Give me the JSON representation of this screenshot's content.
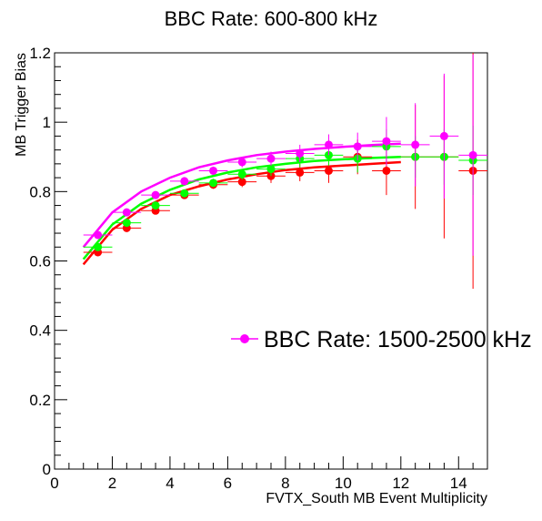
{
  "chart_data": {
    "type": "scatter",
    "title": "BBC Rate: 600-800 kHz",
    "xlabel": "FVTX_South MB Event Multiplicity",
    "ylabel": "MB Trigger Bias",
    "xlim": [
      0,
      15
    ],
    "ylim": [
      0,
      1.2
    ],
    "xticks": [
      0,
      2,
      4,
      6,
      8,
      10,
      12,
      14
    ],
    "yticks": [
      0,
      0.2,
      0.4,
      0.6,
      0.8,
      1,
      1.2
    ],
    "grid": false,
    "legend_placement": "center-right",
    "legend_label": "BBC Rate: 1500-2500 kHz",
    "series": [
      {
        "color": "#ff0000",
        "x": [
          1.5,
          2.5,
          3.5,
          4.5,
          5.5,
          6.5,
          7.5,
          8.5,
          9.5,
          10.5,
          11.5,
          12.5,
          13.5,
          14.5
        ],
        "y": [
          0.625,
          0.695,
          0.745,
          0.79,
          0.82,
          0.828,
          0.845,
          0.855,
          0.86,
          0.9,
          0.86,
          0.9,
          0.9,
          0.86
        ],
        "yerr": [
          0.01,
          0.01,
          0.01,
          0.01,
          0.012,
          0.015,
          0.02,
          0.025,
          0.035,
          0.05,
          0.07,
          0.15,
          0.235,
          0.34
        ],
        "fit": [
          0.59,
          0.69,
          0.75,
          0.79,
          0.815,
          0.835,
          0.85,
          0.862,
          0.87,
          0.875,
          0.88,
          0.885
        ]
      },
      {
        "color": "#00ff00",
        "x": [
          1.5,
          2.5,
          3.5,
          4.5,
          5.5,
          6.5,
          7.5,
          8.5,
          9.5,
          10.5,
          11.5,
          12.5,
          13.5,
          14.5
        ],
        "y": [
          0.64,
          0.71,
          0.76,
          0.795,
          0.825,
          0.85,
          0.865,
          0.895,
          0.905,
          0.895,
          0.93,
          0.9,
          0.9,
          0.89
        ],
        "yerr": [
          0.01,
          0.01,
          0.01,
          0.01,
          0.012,
          0.015,
          0.02,
          0.025,
          0.03,
          0.04,
          0.05,
          0.06,
          0.08,
          0.1
        ],
        "fit": [
          0.605,
          0.705,
          0.765,
          0.805,
          0.835,
          0.855,
          0.87,
          0.88,
          0.888,
          0.893,
          0.897,
          0.9
        ]
      },
      {
        "color": "#ff00ff",
        "x": [
          1.5,
          2.5,
          3.5,
          4.5,
          5.5,
          6.5,
          7.5,
          8.5,
          9.5,
          10.5,
          11.5,
          12.5,
          13.5,
          14.5
        ],
        "y": [
          0.675,
          0.74,
          0.79,
          0.83,
          0.86,
          0.885,
          0.895,
          0.91,
          0.935,
          0.93,
          0.945,
          0.935,
          0.96,
          0.905
        ],
        "yerr": [
          0.01,
          0.01,
          0.01,
          0.01,
          0.012,
          0.015,
          0.02,
          0.025,
          0.03,
          0.04,
          0.07,
          0.12,
          0.18,
          0.29
        ],
        "fit": [
          0.64,
          0.74,
          0.8,
          0.84,
          0.87,
          0.89,
          0.905,
          0.915,
          0.923,
          0.929,
          0.934,
          0.938
        ]
      }
    ],
    "fit_x": [
      1,
      2,
      3,
      4,
      5,
      6,
      7,
      8,
      9,
      10,
      11,
      12
    ]
  }
}
